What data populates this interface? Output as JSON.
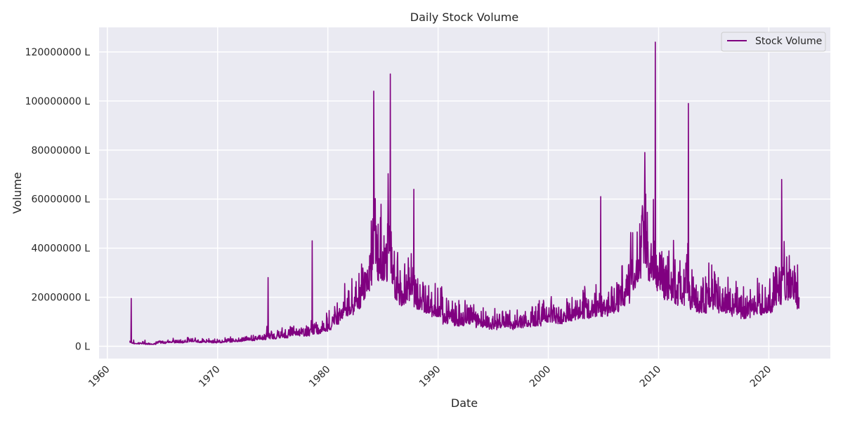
{
  "chart_data": {
    "type": "line",
    "title": "Daily Stock Volume",
    "xlabel": "Date",
    "ylabel": "Volume",
    "xlim": [
      "1959-04-01",
      "2025-08-01"
    ],
    "ylim": [
      -5000000,
      130000000
    ],
    "x_ticks": [
      "1960",
      "1970",
      "1980",
      "1990",
      "2000",
      "2010",
      "2020"
    ],
    "y_ticks": [
      0,
      20000000,
      40000000,
      60000000,
      80000000,
      100000000,
      120000000
    ],
    "y_tick_labels": [
      "0 L",
      "20000000 L",
      "40000000 L",
      "60000000 L",
      "80000000 L",
      "100000000 L",
      "120000000 L"
    ],
    "grid": true,
    "legend_position": "top-right",
    "series": [
      {
        "name": "Stock Volume",
        "color": "#800080",
        "x": [
          "1962-01-02",
          "1962-03-01",
          "1962-06-01",
          "1963-01-01",
          "1963-06-01",
          "1964-01-01",
          "1964-06-01",
          "1965-01-01",
          "1965-06-01",
          "1966-01-01",
          "1966-06-01",
          "1967-01-01",
          "1967-06-01",
          "1968-01-01",
          "1968-06-01",
          "1969-01-01",
          "1969-06-01",
          "1970-01-01",
          "1970-06-01",
          "1971-01-01",
          "1971-06-01",
          "1972-01-01",
          "1972-06-01",
          "1973-01-01",
          "1973-06-01",
          "1974-01-01",
          "1974-06-01",
          "1974-08-01",
          "1975-01-01",
          "1975-06-01",
          "1976-01-01",
          "1976-06-01",
          "1977-01-01",
          "1977-06-01",
          "1978-01-01",
          "1978-06-01",
          "1978-08-01",
          "1979-01-01",
          "1979-06-01",
          "1980-01-01",
          "1980-06-01",
          "1981-01-01",
          "1981-06-01",
          "1982-01-01",
          "1982-06-01",
          "1983-01-01",
          "1983-06-01",
          "1984-01-01",
          "1984-03-01",
          "1984-06-01",
          "1985-01-01",
          "1985-06-01",
          "1985-09-01",
          "1986-01-01",
          "1986-06-01",
          "1987-01-01",
          "1987-06-01",
          "1987-10-20",
          "1988-06-01",
          "1989-01-01",
          "1989-06-01",
          "1990-01-01",
          "1990-06-01",
          "1991-01-01",
          "1991-06-01",
          "1992-01-01",
          "1992-06-01",
          "1993-01-01",
          "1993-06-01",
          "1994-01-01",
          "1994-06-01",
          "1995-01-01",
          "1995-06-01",
          "1996-01-01",
          "1996-06-01",
          "1997-01-01",
          "1997-06-01",
          "1998-01-01",
          "1998-06-01",
          "1999-01-01",
          "1999-06-01",
          "2000-01-01",
          "2000-06-01",
          "2001-01-01",
          "2001-06-01",
          "2002-01-01",
          "2002-06-01",
          "2003-01-01",
          "2003-06-01",
          "2004-01-01",
          "2004-06-01",
          "2004-10-01",
          "2005-01-01",
          "2005-06-01",
          "2006-01-01",
          "2006-06-01",
          "2007-01-01",
          "2007-06-01",
          "2008-01-01",
          "2008-06-01",
          "2008-10-01",
          "2009-01-01",
          "2009-06-01",
          "2009-09-15",
          "2010-01-01",
          "2010-06-01",
          "2011-01-01",
          "2011-06-01",
          "2012-01-01",
          "2012-06-01",
          "2012-09-15",
          "2013-01-01",
          "2013-06-01",
          "2014-01-01",
          "2014-06-01",
          "2015-01-01",
          "2015-06-01",
          "2016-01-01",
          "2016-06-01",
          "2017-01-01",
          "2017-06-01",
          "2018-01-01",
          "2018-06-01",
          "2019-01-01",
          "2019-06-01",
          "2020-01-01",
          "2020-06-01",
          "2021-01-01",
          "2021-03-01",
          "2021-06-01",
          "2022-01-01",
          "2022-06-01",
          "2022-10-01"
        ],
        "y": [
          2000000,
          19500000,
          1500000,
          1200000,
          2500000,
          1000000,
          1800000,
          1500000,
          2000000,
          2500000,
          1800000,
          2200000,
          3000000,
          2500000,
          2000000,
          2800000,
          2200000,
          1800000,
          2500000,
          2200000,
          2800000,
          2500000,
          3200000,
          3000000,
          4000000,
          3500000,
          5000000,
          28000000,
          4000000,
          5000000,
          4500000,
          5500000,
          6000000,
          7000000,
          5500000,
          7000000,
          43000000,
          6500000,
          8000000,
          9000000,
          12000000,
          14000000,
          18000000,
          16000000,
          20000000,
          25000000,
          30000000,
          40000000,
          104000000,
          45000000,
          35000000,
          50000000,
          111000000,
          30000000,
          25000000,
          22000000,
          28000000,
          64000000,
          20000000,
          18000000,
          22000000,
          16000000,
          20000000,
          12000000,
          15000000,
          11000000,
          13000000,
          12000000,
          14000000,
          10000000,
          12000000,
          9000000,
          11000000,
          10000000,
          13000000,
          9000000,
          12000000,
          10000000,
          14000000,
          11000000,
          16000000,
          13000000,
          15000000,
          12000000,
          14000000,
          13000000,
          16000000,
          14000000,
          17000000,
          15000000,
          18000000,
          61000000,
          16000000,
          20000000,
          18000000,
          25000000,
          22000000,
          30000000,
          35000000,
          45000000,
          79000000,
          40000000,
          35000000,
          124000000,
          30000000,
          35000000,
          25000000,
          30000000,
          22000000,
          28000000,
          99000000,
          20000000,
          25000000,
          18000000,
          24000000,
          20000000,
          28000000,
          18000000,
          22000000,
          16000000,
          20000000,
          15000000,
          19000000,
          17000000,
          25000000,
          18000000,
          30000000,
          22000000,
          68000000,
          35000000,
          25000000,
          28000000,
          20000000
        ]
      }
    ]
  }
}
